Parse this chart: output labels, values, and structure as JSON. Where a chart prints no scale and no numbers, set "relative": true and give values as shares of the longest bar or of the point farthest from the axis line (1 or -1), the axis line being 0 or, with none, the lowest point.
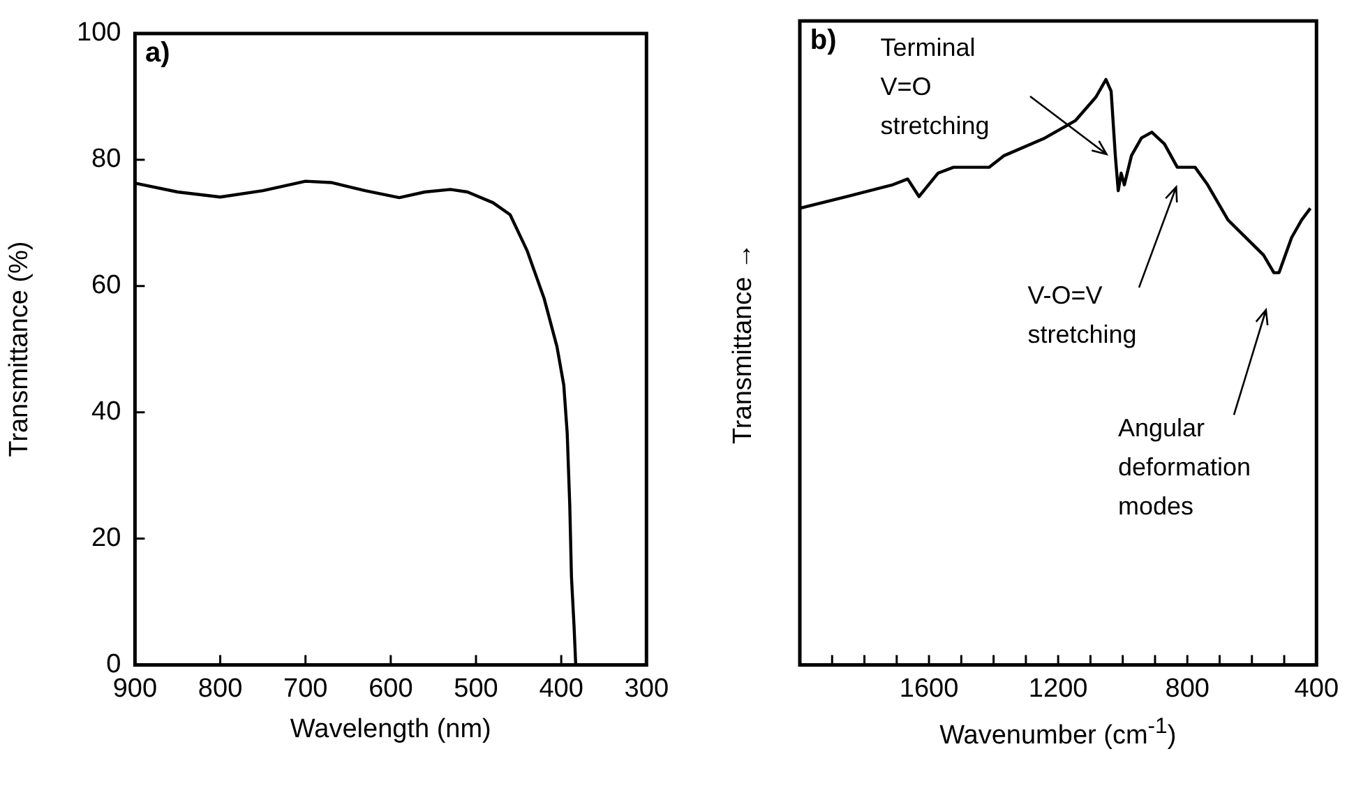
{
  "chart_data": [
    {
      "type": "line",
      "xlabel": "Wavelength (nm)",
      "ylabel": "Transmittance  (%)",
      "annotations": [
        "a)"
      ],
      "xlim": [
        900,
        300
      ],
      "ylim": [
        0,
        100
      ],
      "xticks": [
        900,
        800,
        700,
        600,
        500,
        400,
        300
      ],
      "yticks": [
        0,
        20,
        40,
        60,
        80,
        100
      ],
      "series": [
        {
          "color": "#000000",
          "x": [
            900,
            850,
            800,
            750,
            700,
            670,
            630,
            590,
            560,
            530,
            510,
            480,
            460,
            440,
            420,
            405,
            397,
            393,
            390,
            388,
            385,
            383
          ],
          "values": [
            76.3,
            74.9,
            74.1,
            75.1,
            76.6,
            76.4,
            75.1,
            74.0,
            74.9,
            75.3,
            74.9,
            73.2,
            71.3,
            65.6,
            58.0,
            50.4,
            44.3,
            36.7,
            25.3,
            13.9,
            6.2,
            0
          ]
        }
      ]
    },
    {
      "type": "line",
      "xlabel": "Wavenumber (cm$^{-1}$)",
      "ylabel": "Transmittance →",
      "relative": true,
      "tick_labels": "x",
      "xlim": [
        2000,
        400
      ],
      "xticks": [
        {
          "value": 1900,
          "label": null
        },
        {
          "value": 1800,
          "label": null
        },
        {
          "value": 1700,
          "label": null
        },
        1600,
        {
          "value": 1500,
          "label": null
        },
        {
          "value": 1400,
          "label": null
        },
        {
          "value": 1300,
          "label": null
        },
        1200,
        {
          "value": 1100,
          "label": null
        },
        {
          "value": 1000,
          "label": null
        },
        {
          "value": 900,
          "label": null
        },
        800,
        {
          "value": 700,
          "label": null
        },
        {
          "value": 600,
          "label": null
        },
        {
          "value": 500,
          "label": null
        },
        400
      ],
      "annotations": [
        "b)",
        "Terminal\nV=O\nstretching",
        "V-O=V\nstretching",
        "Angular\ndeformation\nmodes"
      ],
      "series": [
        {
          "color": "#000000",
          "x": [
            2000,
            1855,
            1713,
            1666,
            1631,
            1572,
            1524,
            1414,
            1367,
            1241,
            1146,
            1083,
            1052,
            1036,
            1023,
            1014,
            1005,
            995,
            973,
            942,
            910,
            871,
            831,
            776,
            737,
            674,
            564,
            532,
            516,
            477,
            446,
            419
          ],
          "values": [
            0.78,
            0.8,
            0.82,
            0.83,
            0.8,
            0.84,
            0.85,
            0.85,
            0.87,
            0.9,
            0.93,
            0.97,
            1.0,
            0.98,
            0.87,
            0.81,
            0.84,
            0.82,
            0.87,
            0.9,
            0.91,
            0.89,
            0.85,
            0.85,
            0.82,
            0.76,
            0.7,
            0.67,
            0.67,
            0.73,
            0.76,
            0.78
          ]
        }
      ]
    }
  ]
}
